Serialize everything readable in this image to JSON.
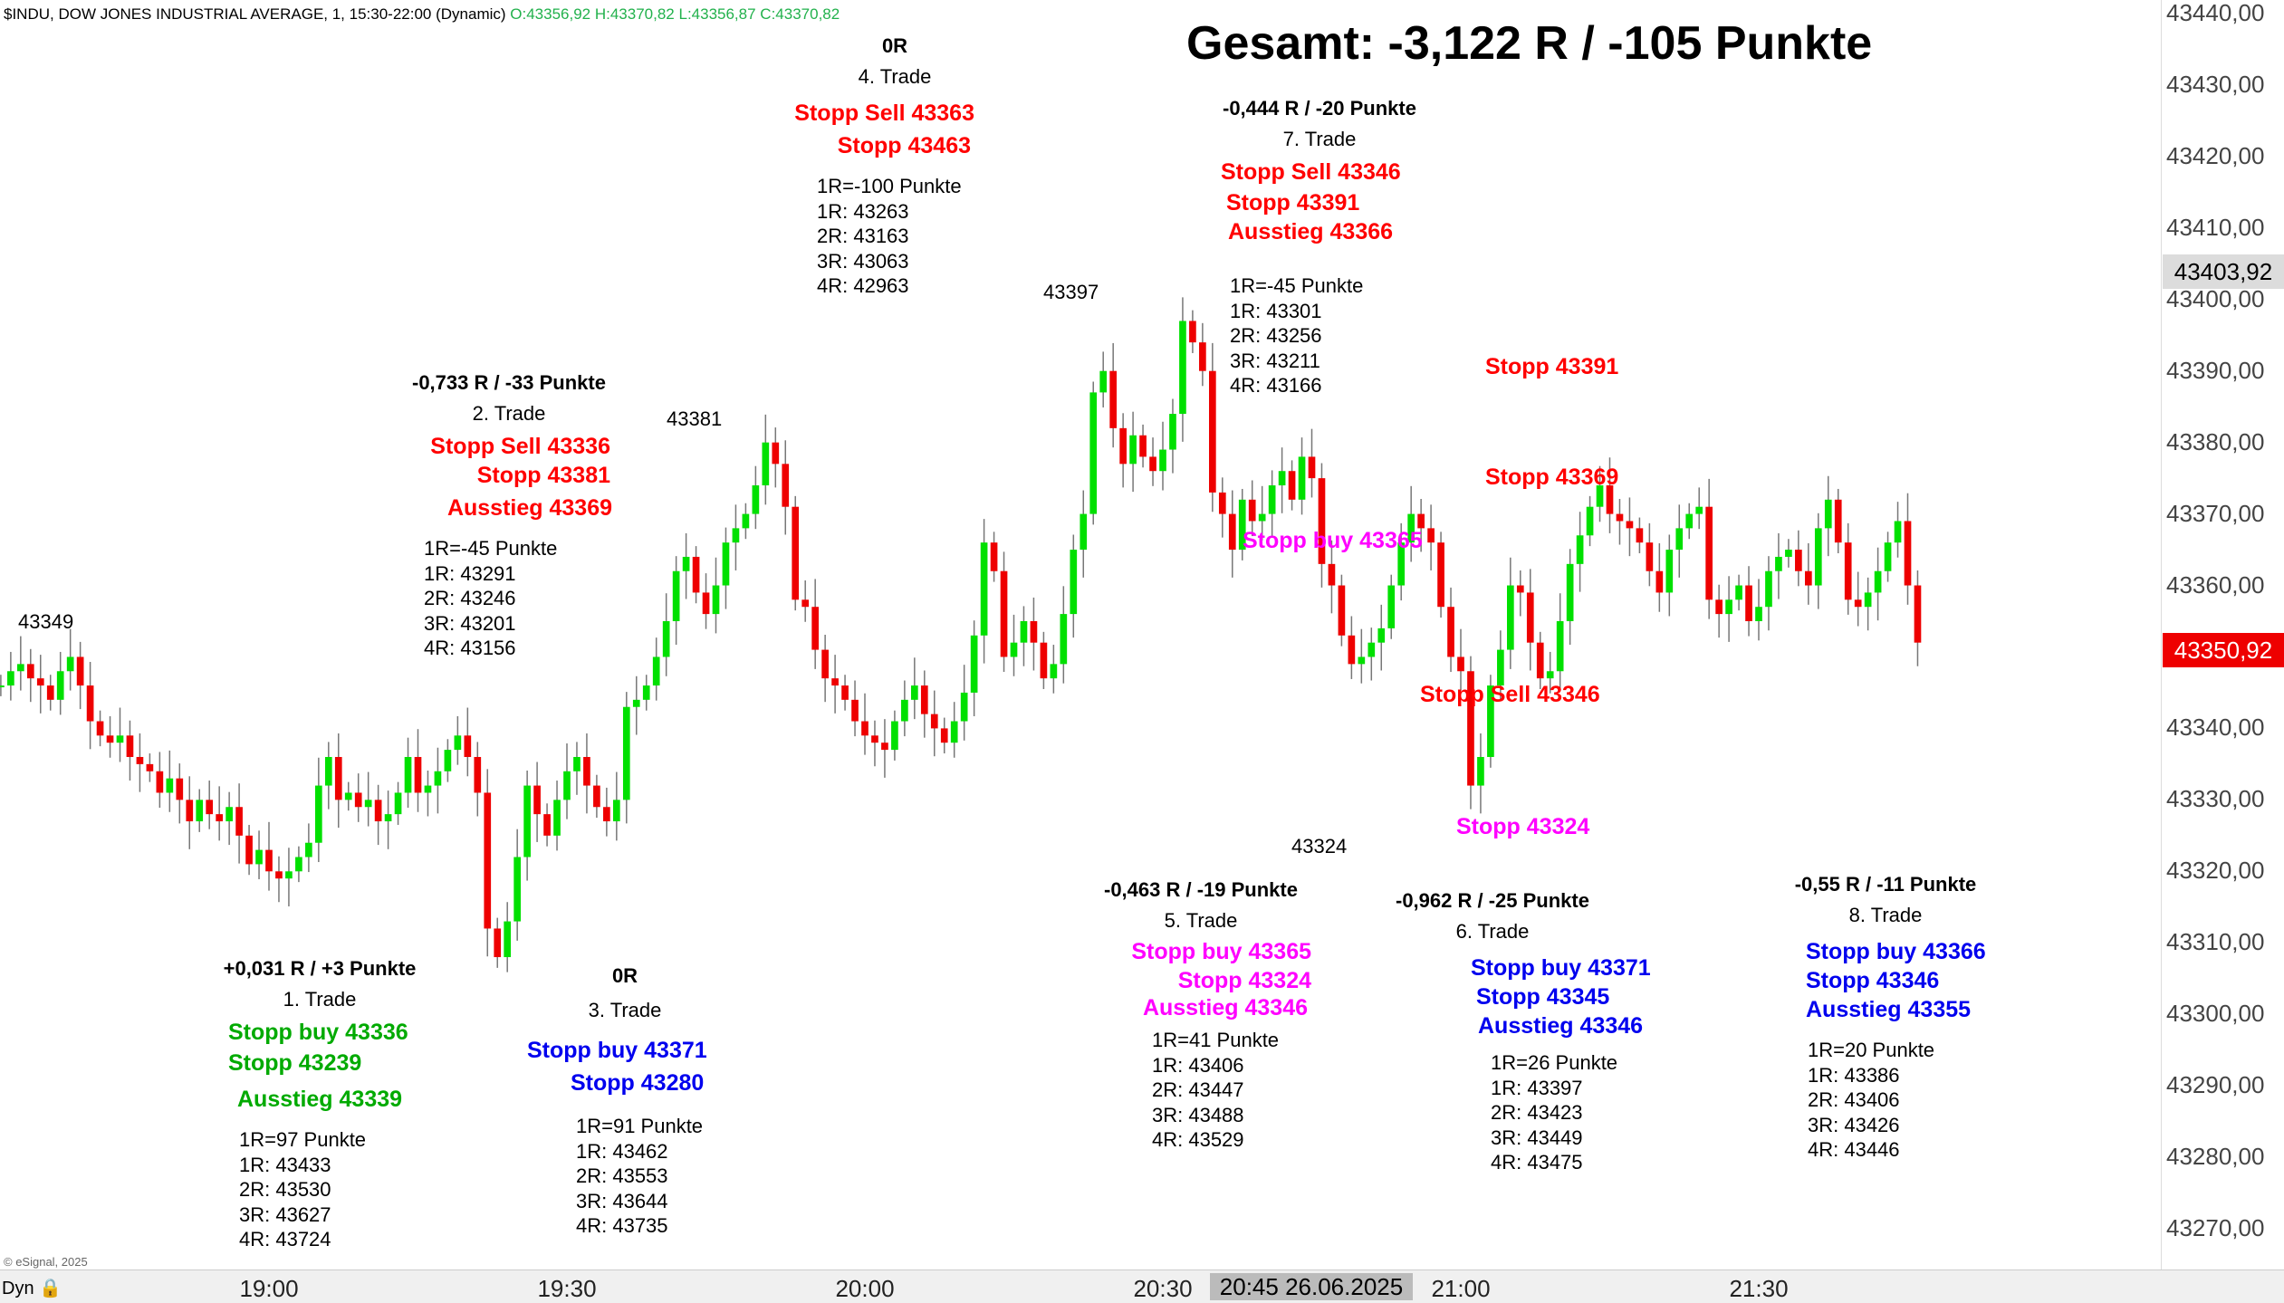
{
  "header": {
    "symbol_text": "$INDU, DOW JONES INDUSTRIAL AVERAGE, 1, 15:30-22:00 (Dynamic)",
    "ohlc_text": "O:43356,92 H:43370,82 L:43356,87 C:43370,82"
  },
  "total": "Gesamt: -3,122 R / -105 Punkte",
  "colors": {
    "up": "#00e000",
    "down": "#ee0000",
    "red": "#ff0000",
    "green": "#00aa00",
    "blue": "#0000ee",
    "magenta": "#ff00ff"
  },
  "trades": [
    {
      "result": "+0,031 R / +3 Punkte",
      "name": "1. Trade",
      "orders": [
        {
          "text": "Stopp buy 43336",
          "color": "green"
        },
        {
          "text": "Stopp 43239",
          "color": "green"
        },
        {
          "text": "Ausstieg 43339",
          "color": "green"
        }
      ],
      "targets": [
        "1R=97 Punkte",
        "1R: 43433",
        "2R: 43530",
        "3R: 43627",
        "4R: 43724"
      ]
    },
    {
      "result": "-0,733 R / -33 Punkte",
      "name": "2. Trade",
      "orders": [
        {
          "text": "Stopp Sell 43336",
          "color": "red"
        },
        {
          "text": "Stopp 43381",
          "color": "red"
        },
        {
          "text": "Ausstieg 43369",
          "color": "red"
        }
      ],
      "targets": [
        "1R=-45 Punkte",
        "1R: 43291",
        "2R: 43246",
        "3R: 43201",
        "4R: 43156"
      ]
    },
    {
      "result": "0R",
      "name": "3. Trade",
      "orders": [
        {
          "text": "Stopp buy 43371",
          "color": "blue"
        },
        {
          "text": "Stopp 43280",
          "color": "blue"
        }
      ],
      "targets": [
        "1R=91 Punkte",
        "1R: 43462",
        "2R: 43553",
        "3R: 43644",
        "4R: 43735"
      ]
    },
    {
      "result": "0R",
      "name": "4. Trade",
      "orders": [
        {
          "text": "Stopp Sell 43363",
          "color": "red"
        },
        {
          "text": "Stopp 43463",
          "color": "red"
        }
      ],
      "targets": [
        "1R=-100 Punkte",
        "1R: 43263",
        "2R: 43163",
        "3R: 43063",
        "4R: 42963"
      ]
    },
    {
      "result": "-0,463 R / -19 Punkte",
      "name": "5. Trade",
      "orders": [
        {
          "text": "Stopp buy 43365",
          "color": "magenta"
        },
        {
          "text": "Stopp 43324",
          "color": "magenta"
        },
        {
          "text": "Ausstieg 43346",
          "color": "magenta"
        }
      ],
      "targets": [
        "1R=41 Punkte",
        "1R: 43406",
        "2R: 43447",
        "3R: 43488",
        "4R: 43529"
      ]
    },
    {
      "result": "-0,962 R / -25 Punkte",
      "name": "6. Trade",
      "orders": [
        {
          "text": "Stopp buy 43371",
          "color": "blue"
        },
        {
          "text": "Stopp 43345",
          "color": "blue"
        },
        {
          "text": "Ausstieg 43346",
          "color": "blue"
        }
      ],
      "targets": [
        "1R=26 Punkte",
        "1R: 43397",
        "2R: 43423",
        "3R: 43449",
        "4R: 43475"
      ]
    },
    {
      "result": "-0,444 R / -20 Punkte",
      "name": "7. Trade",
      "orders": [
        {
          "text": "Stopp Sell 43346",
          "color": "red"
        },
        {
          "text": "Stopp 43391",
          "color": "red"
        },
        {
          "text": "Ausstieg 43366",
          "color": "red"
        }
      ],
      "targets": [
        "1R=-45 Punkte",
        "1R: 43301",
        "2R: 43256",
        "3R: 43211",
        "4R: 43166"
      ]
    },
    {
      "result": "-0,55 R / -11 Punkte",
      "name": "8. Trade",
      "orders": [
        {
          "text": "Stopp buy 43366",
          "color": "blue"
        },
        {
          "text": "Stopp 43346",
          "color": "blue"
        },
        {
          "text": "Ausstieg 43355",
          "color": "blue"
        }
      ],
      "targets": [
        "1R=20 Punkte",
        "1R: 43386",
        "2R: 43406",
        "3R: 43426",
        "4R: 43446"
      ]
    }
  ],
  "chart_labels": [
    {
      "text": "Stopp buy 43365",
      "color": "magenta"
    },
    {
      "text": "Stopp 43391",
      "color": "red"
    },
    {
      "text": "Stopp 43369",
      "color": "red"
    },
    {
      "text": "Stopp Sell 43346",
      "color": "red"
    },
    {
      "text": "Stopp 43324",
      "color": "magenta"
    }
  ],
  "price_levels": [
    "43349",
    "43381",
    "43397",
    "43324"
  ],
  "chart_data": {
    "type": "candlestick",
    "title": "Gesamt: -3,122 R / -105 Punkte",
    "ylim": [
      43263,
      43441
    ],
    "y_ticks": [
      "43440,00",
      "43430,00",
      "43420,00",
      "43410,00",
      "43400,00",
      "43390,00",
      "43380,00",
      "43370,00",
      "43360,00",
      "43350,00",
      "43340,00",
      "43330,00",
      "43320,00",
      "43310,00",
      "43300,00",
      "43290,00",
      "43280,00",
      "43270,00"
    ],
    "y_tick_values": [
      43440,
      43430,
      43420,
      43410,
      43400,
      43390,
      43380,
      43370,
      43360,
      43350,
      43340,
      43330,
      43320,
      43310,
      43300,
      43290,
      43280,
      43270
    ],
    "x_ticks": [
      "19:00",
      "19:30",
      "20:00",
      "20:30",
      "21:00",
      "21:30"
    ],
    "x_tick_minutes": [
      1140,
      1170,
      1200,
      1230,
      1260,
      1290
    ],
    "cursor_date": "20:45 26.06.2025",
    "last_price": "43403,92",
    "current_price": "43350,92",
    "last_price_value": 43403.92,
    "current_price_value": 43350.92,
    "start_minute": 1113,
    "candles_close": [
      43346,
      43348,
      43349,
      43347,
      43346,
      43344,
      43348,
      43350,
      43346,
      43341,
      43339,
      43338,
      43339,
      43336,
      43335,
      43334,
      43331,
      43333,
      43330,
      43327,
      43330,
      43328,
      43327,
      43329,
      43325,
      43321,
      43323,
      43320,
      43319,
      43320,
      43322,
      43324,
      43332,
      43336,
      43330,
      43331,
      43329,
      43330,
      43327,
      43328,
      43331,
      43336,
      43331,
      43332,
      43334,
      43337,
      43339,
      43336,
      43331,
      43312,
      43308,
      43313,
      43322,
      43332,
      43328,
      43325,
      43330,
      43334,
      43336,
      43332,
      43329,
      43327,
      43330,
      43343,
      43344,
      43346,
      43350,
      43355,
      43362,
      43364,
      43359,
      43356,
      43360,
      43366,
      43368,
      43370,
      43374,
      43380,
      43377,
      43371,
      43358,
      43357,
      43351,
      43347,
      43346,
      43344,
      43341,
      43339,
      43338,
      43337,
      43341,
      43344,
      43346,
      43342,
      43340,
      43338,
      43341,
      43345,
      43353,
      43366,
      43362,
      43350,
      43352,
      43355,
      43352,
      43347,
      43349,
      43356,
      43365,
      43370,
      43387,
      43390,
      43382,
      43377,
      43381,
      43378,
      43376,
      43379,
      43384,
      43397,
      43394,
      43390,
      43373,
      43370,
      43365,
      43372,
      43369,
      43370,
      43374,
      43376,
      43372,
      43378,
      43375,
      43363,
      43360,
      43353,
      43349,
      43350,
      43352,
      43354,
      43360,
      43366,
      43370,
      43368,
      43366,
      43357,
      43350,
      43348,
      43332,
      43336,
      43346,
      43351,
      43360,
      43359,
      43352,
      43347,
      43348,
      43355,
      43363,
      43367,
      43371,
      43374,
      43370,
      43369,
      43368,
      43366,
      43362,
      43359,
      43365,
      43368,
      43370,
      43371,
      43358,
      43356,
      43358,
      43360,
      43355,
      43357,
      43362,
      43364,
      43365,
      43362,
      43360,
      43368,
      43372,
      43366,
      43358,
      43357,
      43359,
      43362,
      43366,
      43369,
      43360,
      43352
    ],
    "series_note_visible": "candles shown by close",
    "series": [
      {
        "values": [
          43346
        ]
      }
    ]
  }
}
